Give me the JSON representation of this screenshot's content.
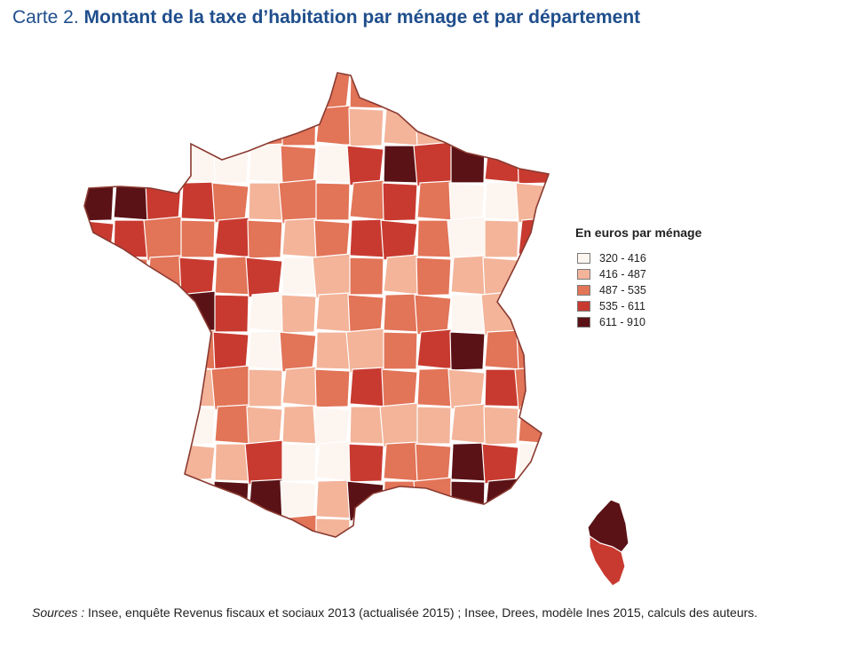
{
  "title": {
    "prefix": "Carte 2.",
    "main": "Montant de la taxe d’habitation par ménage et par département"
  },
  "legend": {
    "title": "En euros par ménage",
    "items": [
      {
        "label": "320 - 416",
        "color": "#fdf5f0"
      },
      {
        "label": "416 - 487",
        "color": "#f3b49a"
      },
      {
        "label": "487 - 535",
        "color": "#e27458"
      },
      {
        "label": "535 - 611",
        "color": "#c83a30"
      },
      {
        "label": "611 - 910",
        "color": "#5a1216"
      }
    ]
  },
  "sources": {
    "lead": "Sources :",
    "text": " Insee, enquête Revenus fiscaux et sociaux 2013 (actualisée 2015) ; Insee, Drees, modèle Ines 2015, calculs des auteurs."
  },
  "colors": {
    "border": "#8a3a30",
    "title": "#1f4e8c"
  }
}
